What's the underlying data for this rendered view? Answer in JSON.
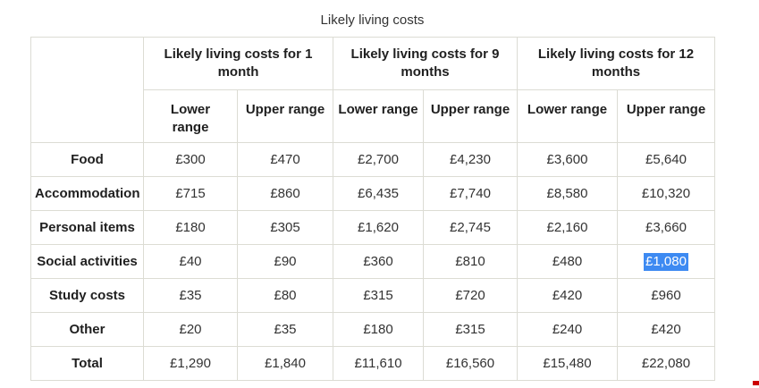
{
  "page": {
    "title": "Likely living costs"
  },
  "table": {
    "corner_label": "",
    "group_headers": [
      "Likely living costs for 1 month",
      "Likely living costs for 9 months",
      "Likely living costs for 12 months"
    ],
    "sub_headers": [
      "Lower range",
      "Upper range",
      "Lower range",
      "Upper range",
      "Lower range",
      "Upper range"
    ],
    "rows": [
      {
        "label": "Food",
        "values": [
          "£300",
          "£470",
          "£2,700",
          "£4,230",
          "£3,600",
          "£5,640"
        ]
      },
      {
        "label": "Accommodation",
        "values": [
          "£715",
          "£860",
          "£6,435",
          "£7,740",
          "£8,580",
          "£10,320"
        ]
      },
      {
        "label": "Personal items",
        "values": [
          "£180",
          "£305",
          "£1,620",
          "£2,745",
          "£2,160",
          "£3,660"
        ]
      },
      {
        "label": "Social activities",
        "values": [
          "£40",
          "£90",
          "£360",
          "£810",
          "£480",
          "£1,080"
        ]
      },
      {
        "label": "Study costs",
        "values": [
          "£35",
          "£80",
          "£315",
          "£720",
          "£420",
          "£960"
        ]
      },
      {
        "label": "Other",
        "values": [
          "£20",
          "£35",
          "£180",
          "£315",
          "£240",
          "£420"
        ]
      },
      {
        "label": "Total",
        "values": [
          "£1,290",
          "£1,840",
          "£11,610",
          "£16,560",
          "£15,480",
          "£22,080"
        ]
      }
    ],
    "selection": {
      "row_index": 3,
      "value_index": 5,
      "selected_text": "£1,080"
    }
  },
  "colors": {
    "page-bg": "#ffffff",
    "border-color": "#dcdcd4",
    "title-color": "#333333",
    "header-text": "#1f1f1f",
    "value-text": "#333333",
    "selection-bg": "#3d8af2",
    "selection-text": "#ffffff",
    "artifact-red": "#cc0000"
  }
}
